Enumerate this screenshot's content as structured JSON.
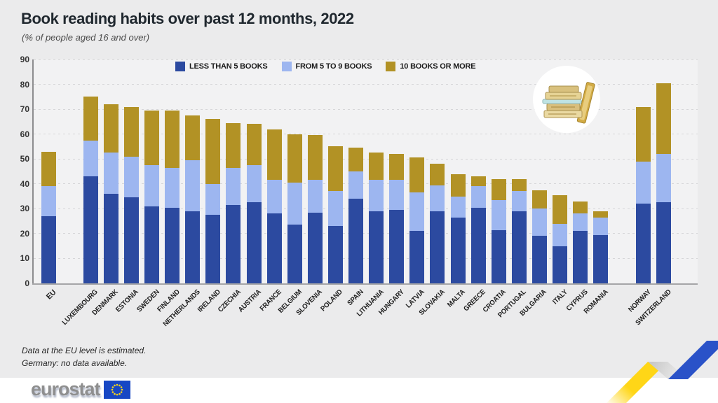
{
  "header": {
    "title": "Book reading habits over past 12 months, 2022",
    "subtitle": "(% of people aged 16 and over)"
  },
  "legend": [
    {
      "label": "LESS THAN 5 BOOKS",
      "color": "#2C4AA0"
    },
    {
      "label": "FROM 5 TO 9 BOOKS",
      "color": "#9DB6F0"
    },
    {
      "label": "10 BOOKS OR MORE",
      "color": "#B29225"
    }
  ],
  "chart_data": {
    "type": "bar",
    "stacked": true,
    "title": "Book reading habits over past 12 months, 2022",
    "xlabel": "",
    "ylabel": "% of people aged 16 and over",
    "ylim": [
      0,
      90
    ],
    "ytick_step": 10,
    "yticks": [
      0,
      10,
      20,
      30,
      40,
      50,
      60,
      70,
      80,
      90
    ],
    "grid": "dashed horizontal",
    "legend_position": "top",
    "series_names": [
      "LESS THAN 5 BOOKS",
      "FROM 5 TO 9 BOOKS",
      "10 BOOKS OR MORE"
    ],
    "series_colors": [
      "#2C4AA0",
      "#9DB6F0",
      "#B29225"
    ],
    "bars": [
      {
        "label": "EU",
        "group": "eu-aggregate",
        "values": [
          27,
          12,
          14
        ]
      },
      {
        "label": "LUXEMBOURG",
        "group": "eu-member",
        "values": [
          43,
          14.5,
          17.5
        ]
      },
      {
        "label": "DENMARK",
        "group": "eu-member",
        "values": [
          36,
          16.5,
          19.5
        ]
      },
      {
        "label": "ESTONIA",
        "group": "eu-member",
        "values": [
          34.5,
          16.5,
          20
        ]
      },
      {
        "label": "SWEDEN",
        "group": "eu-member",
        "values": [
          31,
          16.5,
          22
        ]
      },
      {
        "label": "FINLAND",
        "group": "eu-member",
        "values": [
          30.5,
          16,
          23
        ]
      },
      {
        "label": "NETHERLANDS",
        "group": "eu-member",
        "values": [
          29,
          20.5,
          18
        ]
      },
      {
        "label": "IRELAND",
        "group": "eu-member",
        "values": [
          27.5,
          12.5,
          26
        ]
      },
      {
        "label": "CZECHIA",
        "group": "eu-member",
        "values": [
          31.5,
          15,
          18
        ]
      },
      {
        "label": "AUSTRIA",
        "group": "eu-member",
        "values": [
          32.5,
          15,
          16.5
        ]
      },
      {
        "label": "FRANCE",
        "group": "eu-member",
        "values": [
          28,
          13.5,
          20.5
        ]
      },
      {
        "label": "BELGIUM",
        "group": "eu-member",
        "values": [
          23.5,
          17,
          19.5
        ]
      },
      {
        "label": "SLOVENIA",
        "group": "eu-member",
        "values": [
          28.5,
          13,
          18
        ]
      },
      {
        "label": "POLAND",
        "group": "eu-member",
        "values": [
          23,
          14,
          18
        ]
      },
      {
        "label": "SPAIN",
        "group": "eu-member",
        "values": [
          34,
          11,
          9.5
        ]
      },
      {
        "label": "LITHUANIA",
        "group": "eu-member",
        "values": [
          29,
          12.5,
          11
        ]
      },
      {
        "label": "HUNGARY",
        "group": "eu-member",
        "values": [
          29.5,
          12,
          10.5
        ]
      },
      {
        "label": "LATVIA",
        "group": "eu-member",
        "values": [
          21,
          15.5,
          14
        ]
      },
      {
        "label": "SLOVAKIA",
        "group": "eu-member",
        "values": [
          29,
          10.5,
          8.5
        ]
      },
      {
        "label": "MALTA",
        "group": "eu-member",
        "values": [
          26.5,
          8.5,
          9
        ]
      },
      {
        "label": "GREECE",
        "group": "eu-member",
        "values": [
          30.5,
          8.5,
          4
        ]
      },
      {
        "label": "CROATIA",
        "group": "eu-member",
        "values": [
          21.5,
          12,
          8.5
        ]
      },
      {
        "label": "PORTUGAL",
        "group": "eu-member",
        "values": [
          29,
          8,
          5
        ]
      },
      {
        "label": "BULGARIA",
        "group": "eu-member",
        "values": [
          19,
          11,
          7.5
        ]
      },
      {
        "label": "ITALY",
        "group": "eu-member",
        "values": [
          15,
          9,
          11.5
        ]
      },
      {
        "label": "CYPRUS",
        "group": "eu-member",
        "values": [
          21,
          7,
          5
        ]
      },
      {
        "label": "ROMANIA",
        "group": "eu-member",
        "values": [
          19.5,
          7,
          2.5
        ]
      },
      {
        "label": "NORWAY",
        "group": "non-eu",
        "values": [
          32,
          17,
          22
        ]
      },
      {
        "label": "SWITZERLAND",
        "group": "non-eu",
        "values": [
          32.5,
          19.5,
          28.5
        ]
      }
    ]
  },
  "footnotes": [
    "Data at the EU level is estimated.",
    "Germany: no data available."
  ],
  "logo": {
    "text": "eurostat"
  },
  "colors": {
    "page_background": "#ebebec",
    "plot_background": "#f2f2f3",
    "ribbon_yellow": "#FFD617",
    "ribbon_blue": "#2A52C8",
    "eu_flag_blue": "#1747C4",
    "eu_star_yellow": "#FFD617"
  }
}
